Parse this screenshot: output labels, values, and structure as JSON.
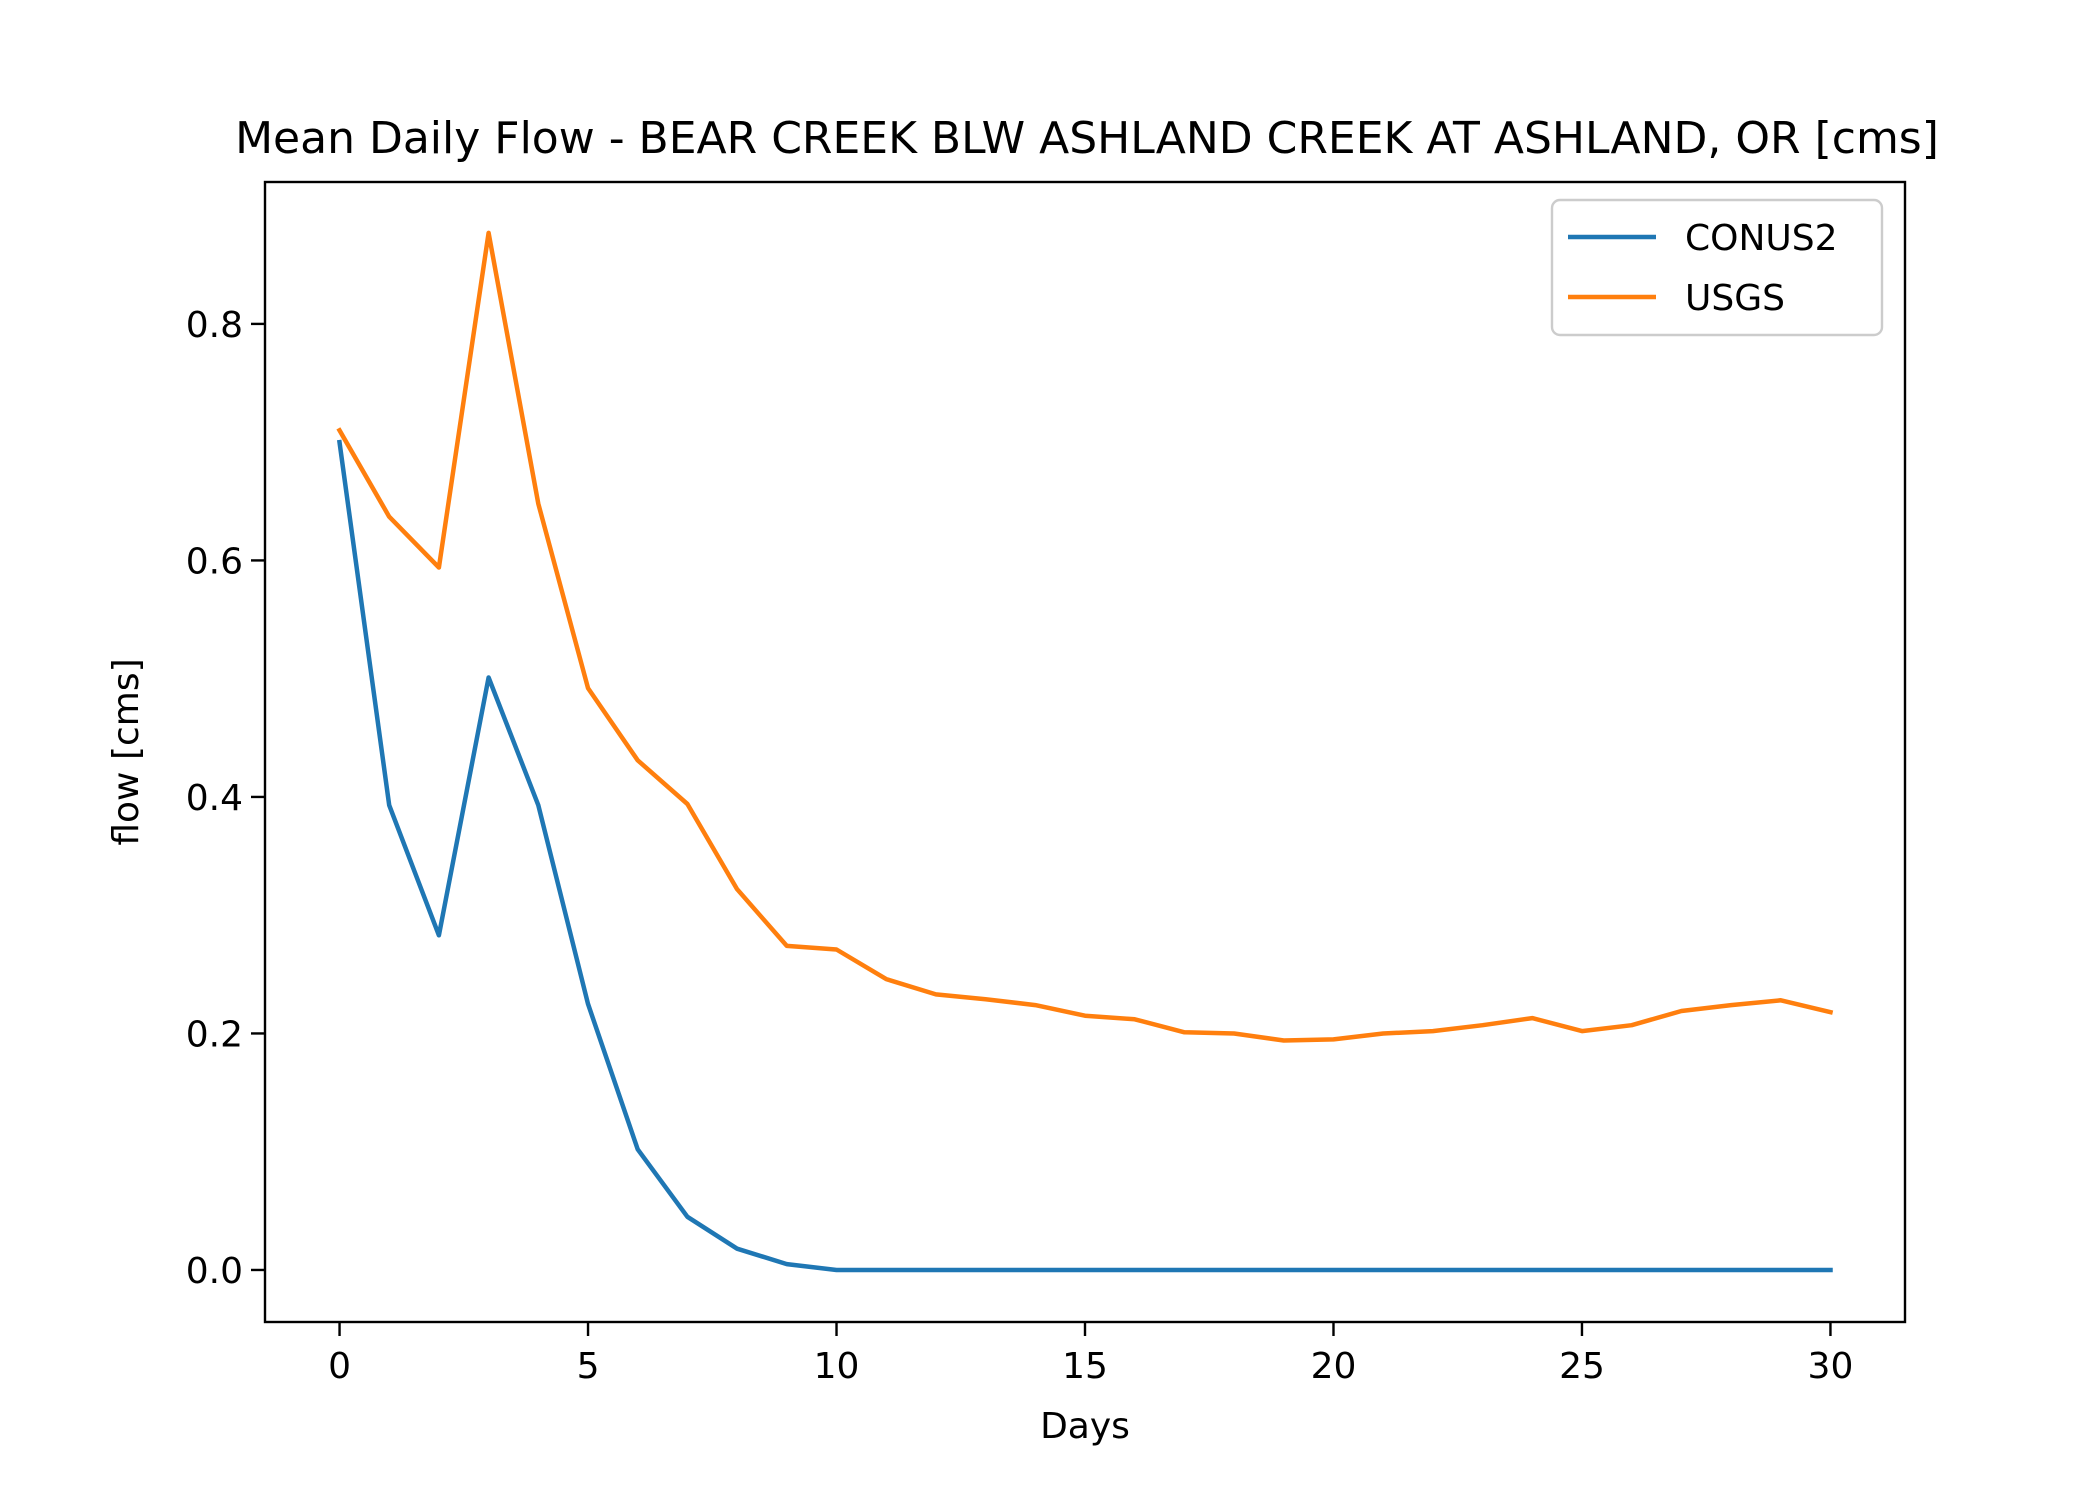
{
  "chart_data": {
    "type": "line",
    "title": "Mean Daily Flow - BEAR CREEK BLW ASHLAND CREEK AT ASHLAND, OR [cms]",
    "xlabel": "Days",
    "ylabel": "flow [cms]",
    "xlim": [
      -1.5,
      31.5
    ],
    "ylim": [
      -0.044,
      0.92
    ],
    "xticks": [
      0,
      5,
      10,
      15,
      20,
      25,
      30
    ],
    "yticks": [
      0.0,
      0.2,
      0.4,
      0.6,
      0.8
    ],
    "grid": false,
    "legend_position": "top-right",
    "x": [
      0,
      1,
      2,
      3,
      4,
      5,
      6,
      7,
      8,
      9,
      10,
      11,
      12,
      13,
      14,
      15,
      16,
      17,
      18,
      19,
      20,
      21,
      22,
      23,
      24,
      25,
      26,
      27,
      28,
      29,
      30
    ],
    "series": [
      {
        "name": "CONUS2",
        "color": "#1f77b4",
        "values": [
          0.7,
          0.393,
          0.283,
          0.501,
          0.393,
          0.225,
          0.102,
          0.045,
          0.018,
          0.005,
          0.0,
          0.0,
          0.0,
          0.0,
          0.0,
          0.0,
          0.0,
          0.0,
          0.0,
          0.0,
          0.0,
          0.0,
          0.0,
          0.0,
          0.0,
          0.0,
          0.0,
          0.0,
          0.0,
          0.0,
          0.0
        ]
      },
      {
        "name": "USGS",
        "color": "#ff7f0e",
        "values": [
          0.71,
          0.637,
          0.594,
          0.877,
          0.648,
          0.492,
          0.431,
          0.394,
          0.322,
          0.274,
          0.271,
          0.246,
          0.233,
          0.229,
          0.224,
          0.215,
          0.212,
          0.201,
          0.2,
          0.194,
          0.195,
          0.2,
          0.202,
          0.207,
          0.213,
          0.202,
          0.207,
          0.219,
          0.224,
          0.228,
          0.218
        ]
      }
    ]
  }
}
